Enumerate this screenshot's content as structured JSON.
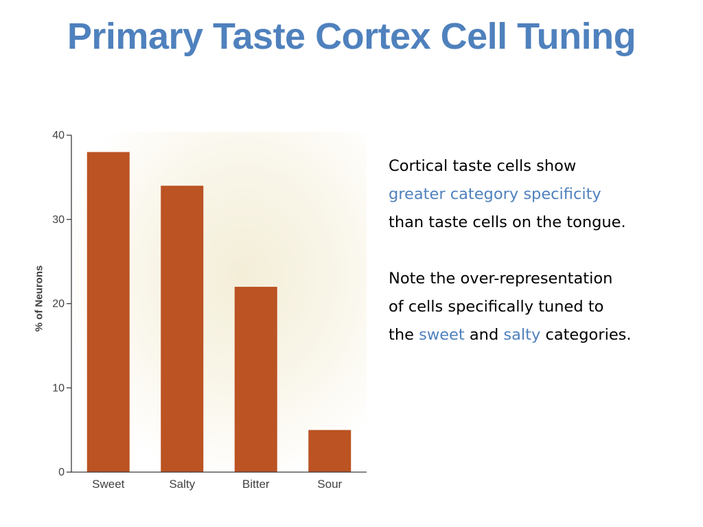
{
  "slide": {
    "title": "Primary Taste Cortex Cell Tuning"
  },
  "text": {
    "p1_line1": "Cortical taste cells show",
    "p1_highlight": "greater category specificity",
    "p1_line3": "than taste cells on the tongue.",
    "p2_line1": "Note the over-representation",
    "p2_line2": "of cells specifically tuned to",
    "p2_the": "the",
    "p2_sweet": "sweet",
    "p2_and": "and",
    "p2_salty": "salty",
    "p2_end": "categories.",
    "highlight_color": "#4f81bd"
  },
  "chart_data": {
    "type": "bar",
    "categories": [
      "Sweet",
      "Salty",
      "Bitter",
      "Sour"
    ],
    "values": [
      38,
      34,
      22,
      5
    ],
    "ylabel": "% of Neurons",
    "xlabel": "",
    "ylim": [
      0,
      40
    ],
    "yticks": [
      "0",
      "10",
      "20",
      "30",
      "40"
    ],
    "grid": false,
    "bar_color": "#bb5323"
  }
}
